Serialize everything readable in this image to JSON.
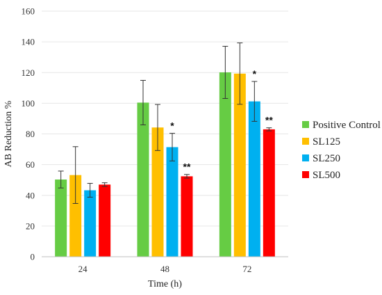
{
  "chart_data": {
    "type": "bar",
    "xlabel": "Time (h)",
    "ylabel": "AB Reduction %",
    "ylim": [
      0,
      160
    ],
    "yticks": [
      0,
      20,
      40,
      60,
      80,
      100,
      120,
      140,
      160
    ],
    "grid": true,
    "legend_position": "right",
    "categories": [
      "24",
      "48",
      "72"
    ],
    "series": [
      {
        "name": "Positive Control",
        "color": "#66cc44",
        "values": [
          50.3,
          100.4,
          120.1
        ],
        "errors": [
          5.5,
          14.5,
          17.0
        ],
        "annotations": [
          "",
          "",
          ""
        ]
      },
      {
        "name": "SL125",
        "color": "#ffbf00",
        "values": [
          53.2,
          84.2,
          119.3
        ],
        "errors": [
          18.5,
          15.0,
          20.0
        ],
        "annotations": [
          "",
          "",
          ""
        ]
      },
      {
        "name": "SL250",
        "color": "#00b0f0",
        "values": [
          43.3,
          71.4,
          101.2
        ],
        "errors": [
          4.5,
          9.0,
          13.0
        ],
        "annotations": [
          "",
          "*",
          "*"
        ]
      },
      {
        "name": "SL500",
        "color": "#ff0000",
        "values": [
          47.0,
          52.4,
          83.0
        ],
        "errors": [
          1.2,
          1.2,
          1.0
        ],
        "annotations": [
          "",
          "**",
          "**"
        ]
      }
    ]
  }
}
